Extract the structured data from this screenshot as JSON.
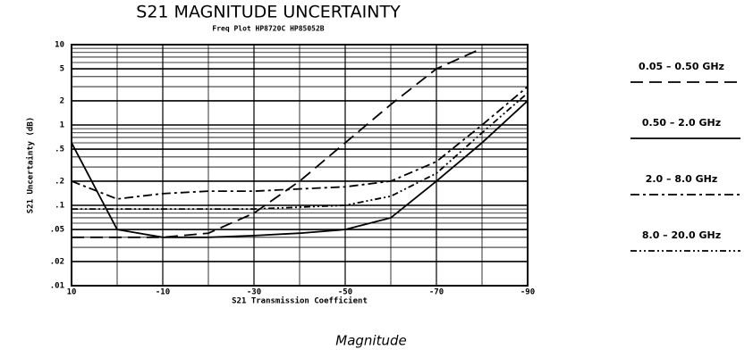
{
  "chart_data": {
    "type": "line",
    "title": "S21 MAGNITUDE UNCERTAINTY",
    "subtitle": "Freq Plot HP8720C HP85052B",
    "x_label": "S21 Transmission Coefficient",
    "y_label": "S21 Uncertainty (dB)",
    "caption": "Magnitude",
    "x": [
      10,
      0,
      -10,
      -20,
      -30,
      -40,
      -50,
      -60,
      -70,
      -80,
      -90
    ],
    "xlim": [
      10,
      -90
    ],
    "xticks": [
      10,
      -10,
      -30,
      -50,
      -70,
      -90
    ],
    "ylim": [
      0.01,
      10
    ],
    "yticks": [
      {
        "value": 0.01,
        "label": ".01"
      },
      {
        "value": 0.02,
        "label": ".02"
      },
      {
        "value": 0.05,
        "label": ".05"
      },
      {
        "value": 0.1,
        "label": ".1"
      },
      {
        "value": 0.2,
        "label": ".2"
      },
      {
        "value": 0.5,
        "label": ".5"
      },
      1,
      2,
      5,
      10
    ],
    "log_y": true,
    "grid": true,
    "legend": "right",
    "series": [
      {
        "name": "0.05 – 0.50 GHz",
        "color": "#000000",
        "style": "dashed",
        "values": [
          0.04,
          0.04,
          0.04,
          0.045,
          0.08,
          0.2,
          0.6,
          1.8,
          5,
          9,
          null
        ]
      },
      {
        "name": "0.50 – 2.0 GHz",
        "color": "#000000",
        "style": "solid",
        "values": [
          0.6,
          0.05,
          0.04,
          0.04,
          0.042,
          0.045,
          0.05,
          0.07,
          0.2,
          0.6,
          2
        ]
      },
      {
        "name": "2.0 – 8.0 GHz",
        "color": "#000000",
        "style": "dashdot",
        "values": [
          0.2,
          0.12,
          0.14,
          0.15,
          0.15,
          0.16,
          0.17,
          0.2,
          0.35,
          1,
          3
        ]
      },
      {
        "name": "8.0 – 20.0 GHz",
        "color": "#000000",
        "style": "dashdotdot",
        "values": [
          0.09,
          0.09,
          0.09,
          0.09,
          0.09,
          0.095,
          0.1,
          0.13,
          0.25,
          0.8,
          2.5
        ]
      }
    ]
  }
}
